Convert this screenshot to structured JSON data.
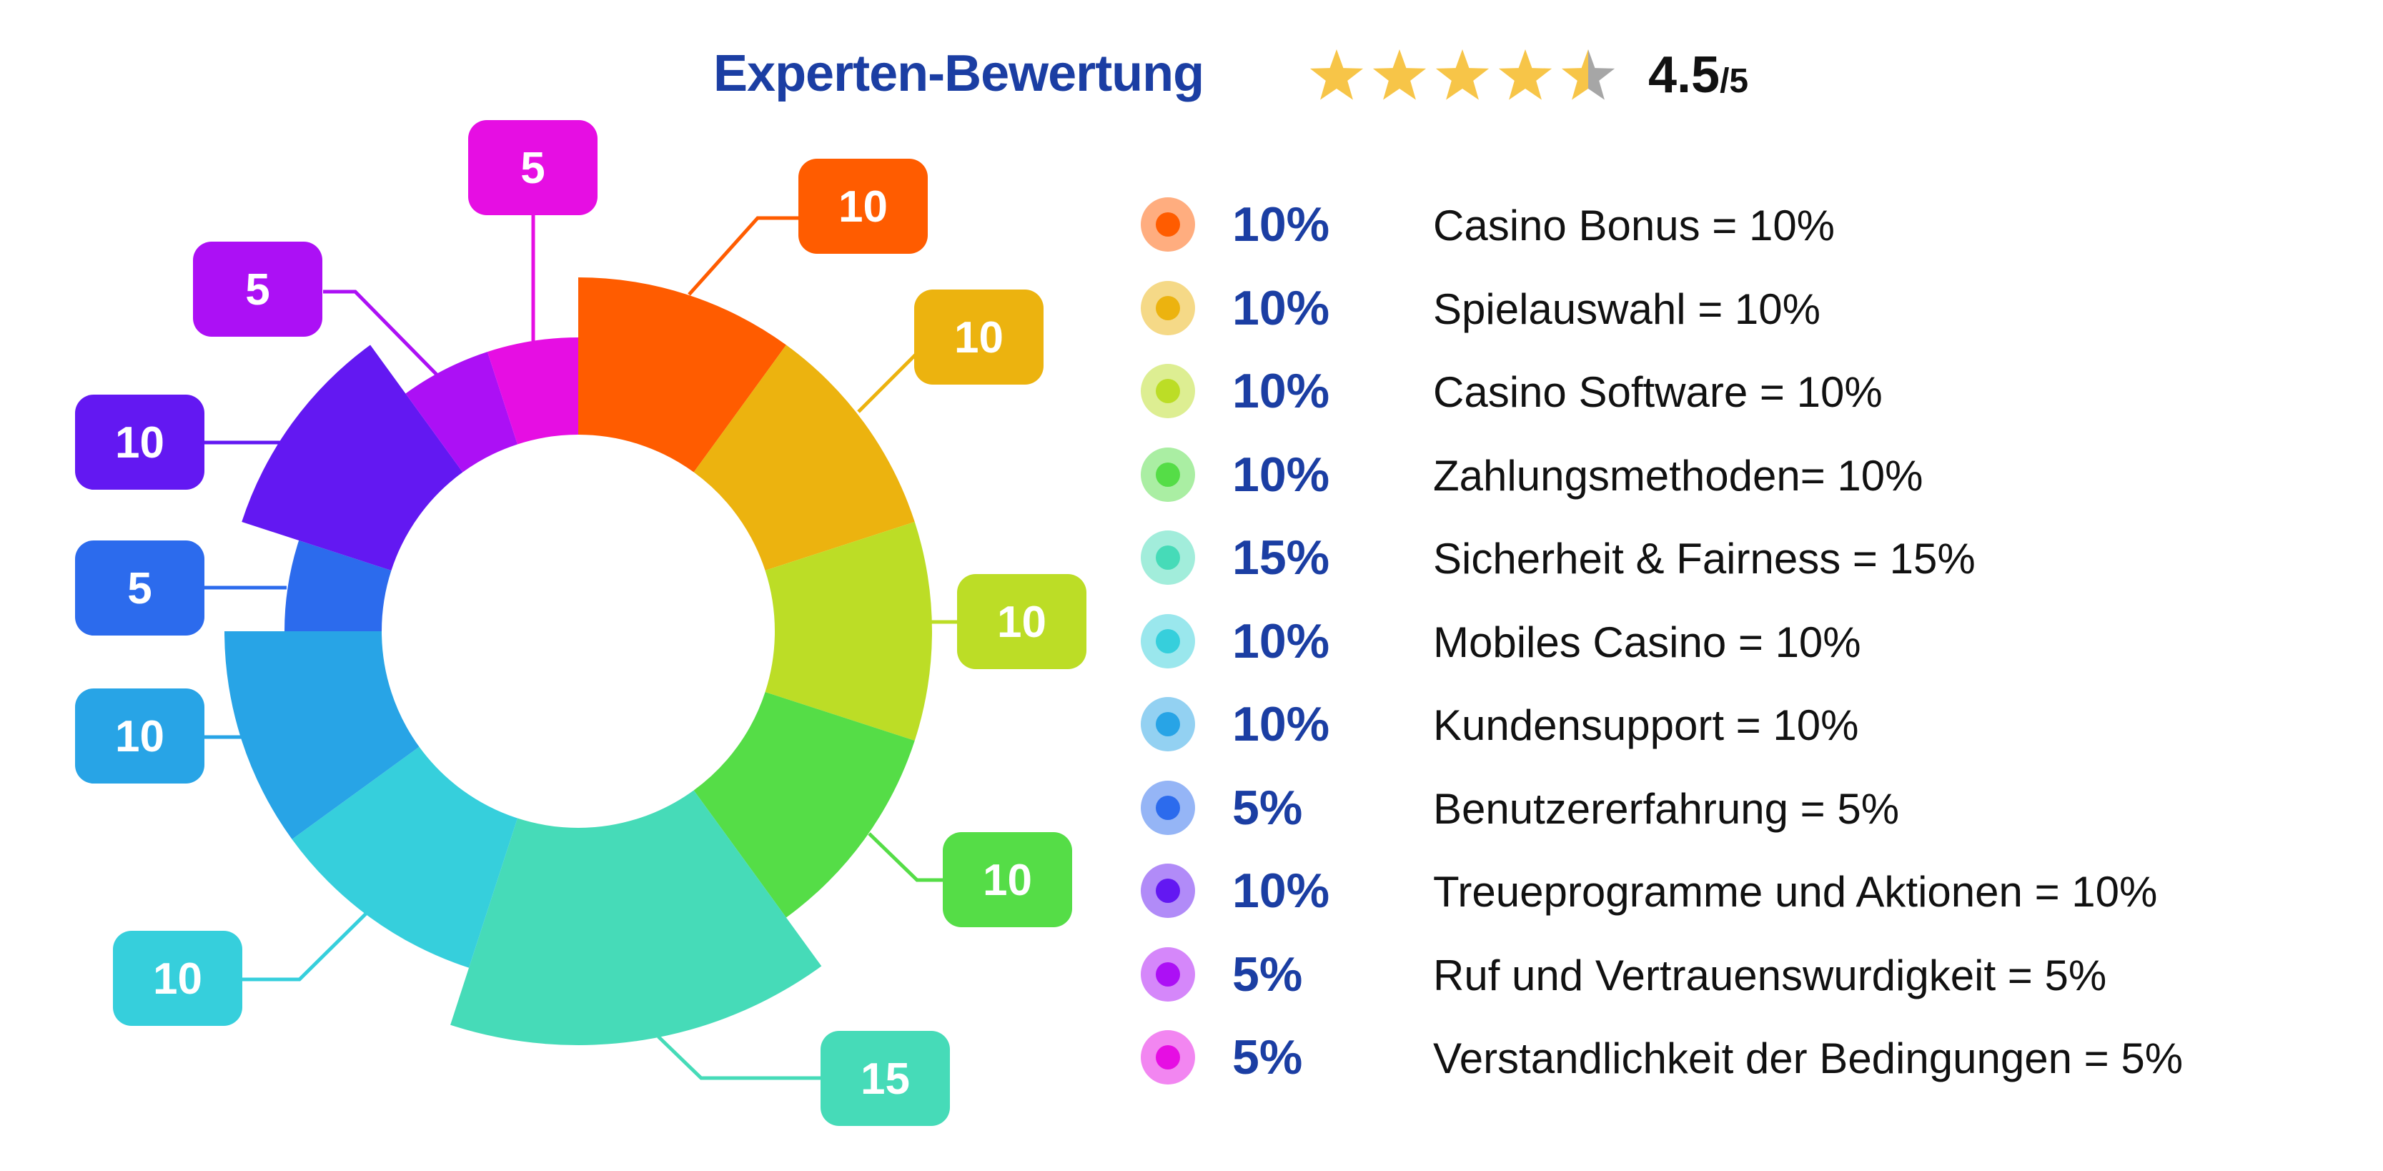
{
  "header": {
    "title": "Experten-Bewertung",
    "rating": 4.5,
    "rating_value": "4.5",
    "rating_max": "/5",
    "star_color": "#f7c548",
    "star_empty_color": "#a6a6a6",
    "title_color": "#1b3ea3"
  },
  "chart_data": {
    "type": "pie",
    "variant": "donut with value-scaled radius",
    "unit": "%",
    "categories": [
      "Casino Bonus",
      "Spielauswahl",
      "Casino Software",
      "Zahlungsmethoden",
      "Sicherheit & Fairness",
      "Mobiles Casino",
      "Kundensupport",
      "Benutzererfahrung",
      "Treueprogramme und Aktionen",
      "Ruf und Vertrauenswurdigkeit",
      "Verstandlichkeit der Bedingungen"
    ],
    "values": [
      10,
      10,
      10,
      10,
      15,
      10,
      10,
      5,
      10,
      5,
      5
    ],
    "colors": [
      "#ff5c00",
      "#ecb30f",
      "#bcdd26",
      "#55dd47",
      "#46dbb8",
      "#36cfdc",
      "#28a4e6",
      "#2c6bed",
      "#6318f2",
      "#ac10f5",
      "#e60ee3"
    ],
    "legend_placement": "right"
  },
  "legend": {
    "items": [
      {
        "percent": "10%",
        "label": "Casino Bonus = 10%"
      },
      {
        "percent": "10%",
        "label": "Spielauswahl = 10%"
      },
      {
        "percent": "10%",
        "label": "Casino Software = 10%"
      },
      {
        "percent": "10%",
        "label": "Zahlungsmethoden= 10%"
      },
      {
        "percent": "15%",
        "label": "Sicherheit & Fairness = 15%"
      },
      {
        "percent": "10%",
        "label": "Mobiles Casino = 10%"
      },
      {
        "percent": "10%",
        "label": "Kundensupport = 10%"
      },
      {
        "percent": "5%",
        "label": "Benutzererfahrung = 5%"
      },
      {
        "percent": "10%",
        "label": "Treueprogramme und Aktionen = 10%"
      },
      {
        "percent": "5%",
        "label": "Ruf und Vertrauenswurdigkeit = 5%"
      },
      {
        "percent": "5%",
        "label": "Verstandlichkeit der Bedingungen = 5%"
      }
    ]
  }
}
